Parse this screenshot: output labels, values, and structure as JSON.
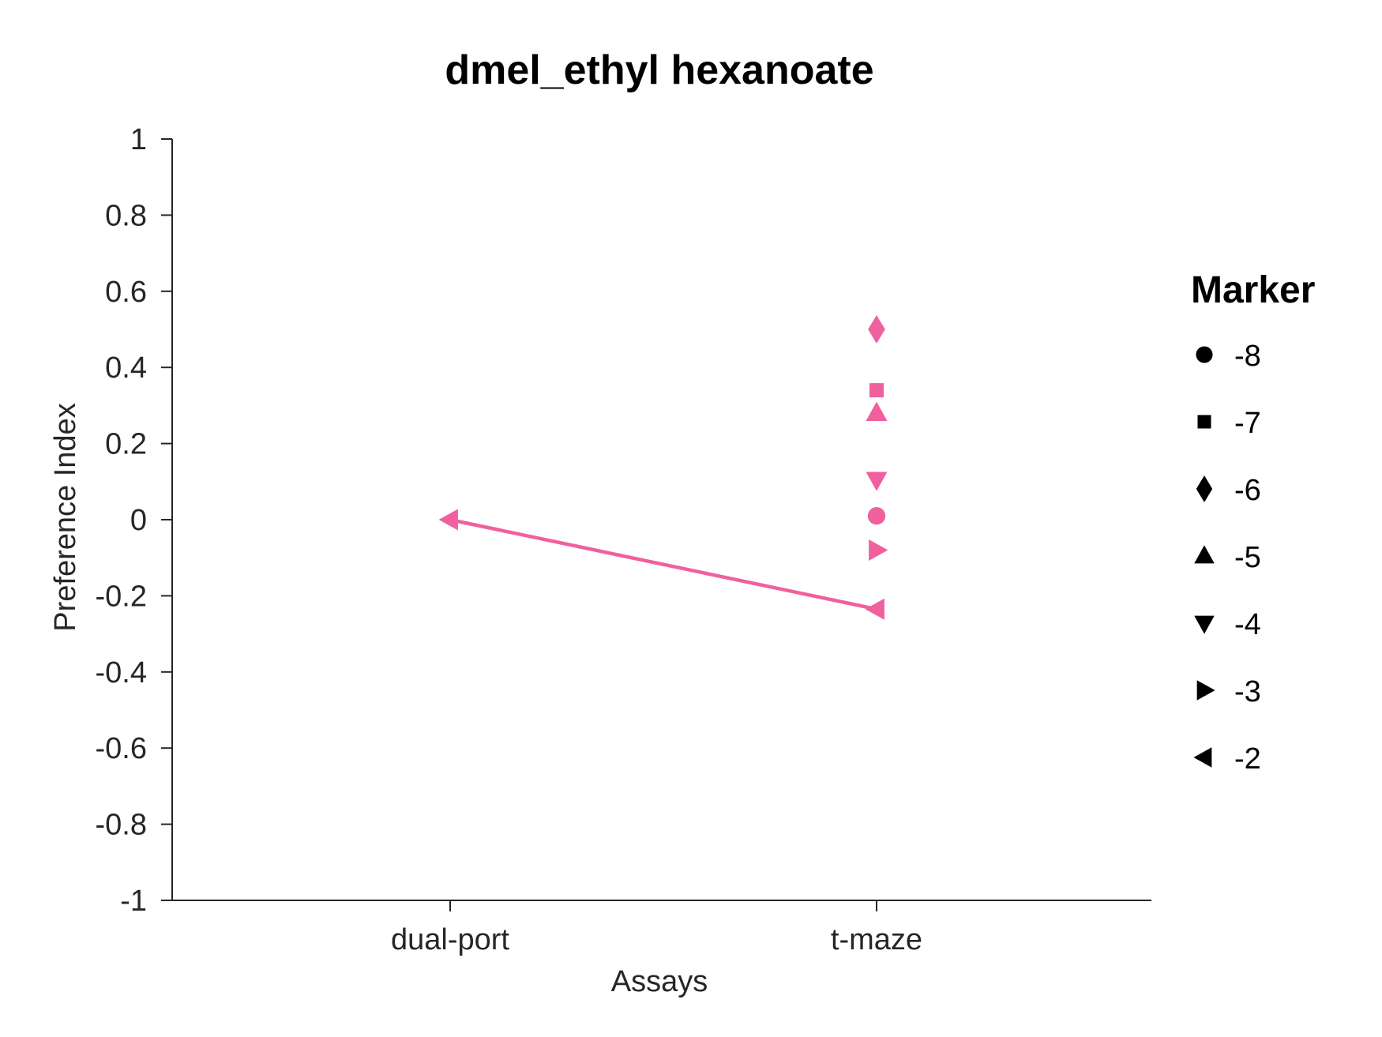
{
  "chart_data": {
    "type": "scatter",
    "title": "dmel_ethyl hexanoate",
    "xlabel": "Assays",
    "ylabel": "Preference Index",
    "categories": [
      "dual-port",
      "t-maze"
    ],
    "ylim": [
      -1,
      1
    ],
    "yticks": [
      1,
      0.8,
      0.6,
      0.4,
      0.2,
      0,
      -0.2,
      -0.4,
      -0.6,
      -0.8,
      -1
    ],
    "ytick_labels": [
      "1",
      "0.8",
      "0.6",
      "0.4",
      "0.2",
      "0",
      "-0.2",
      "-0.4",
      "-0.6",
      "-0.8",
      "-1"
    ],
    "grid": false,
    "color": "#f0609e",
    "points": [
      {
        "category": "t-maze",
        "marker": "circle",
        "value": 0.01
      },
      {
        "category": "t-maze",
        "marker": "square",
        "value": 0.34
      },
      {
        "category": "t-maze",
        "marker": "diamond",
        "value": 0.5
      },
      {
        "category": "t-maze",
        "marker": "triangle-up",
        "value": 0.28
      },
      {
        "category": "t-maze",
        "marker": "triangle-down",
        "value": 0.105
      },
      {
        "category": "t-maze",
        "marker": "triangle-right",
        "value": -0.08
      },
      {
        "category": "dual-port",
        "marker": "triangle-left",
        "value": 0.0
      },
      {
        "category": "t-maze",
        "marker": "triangle-left",
        "value": -0.235
      }
    ],
    "line": {
      "marker": "triangle-left",
      "points": [
        {
          "category": "dual-port",
          "value": 0.0
        },
        {
          "category": "t-maze",
          "value": -0.235
        }
      ]
    },
    "legend": {
      "title": "Marker",
      "placement": "right",
      "entries": [
        {
          "label": "-8",
          "marker": "circle"
        },
        {
          "label": "-7",
          "marker": "square"
        },
        {
          "label": "-6",
          "marker": "diamond"
        },
        {
          "label": "-5",
          "marker": "triangle-up"
        },
        {
          "label": "-4",
          "marker": "triangle-down"
        },
        {
          "label": "-3",
          "marker": "triangle-right"
        },
        {
          "label": "-2",
          "marker": "triangle-left"
        }
      ]
    }
  }
}
